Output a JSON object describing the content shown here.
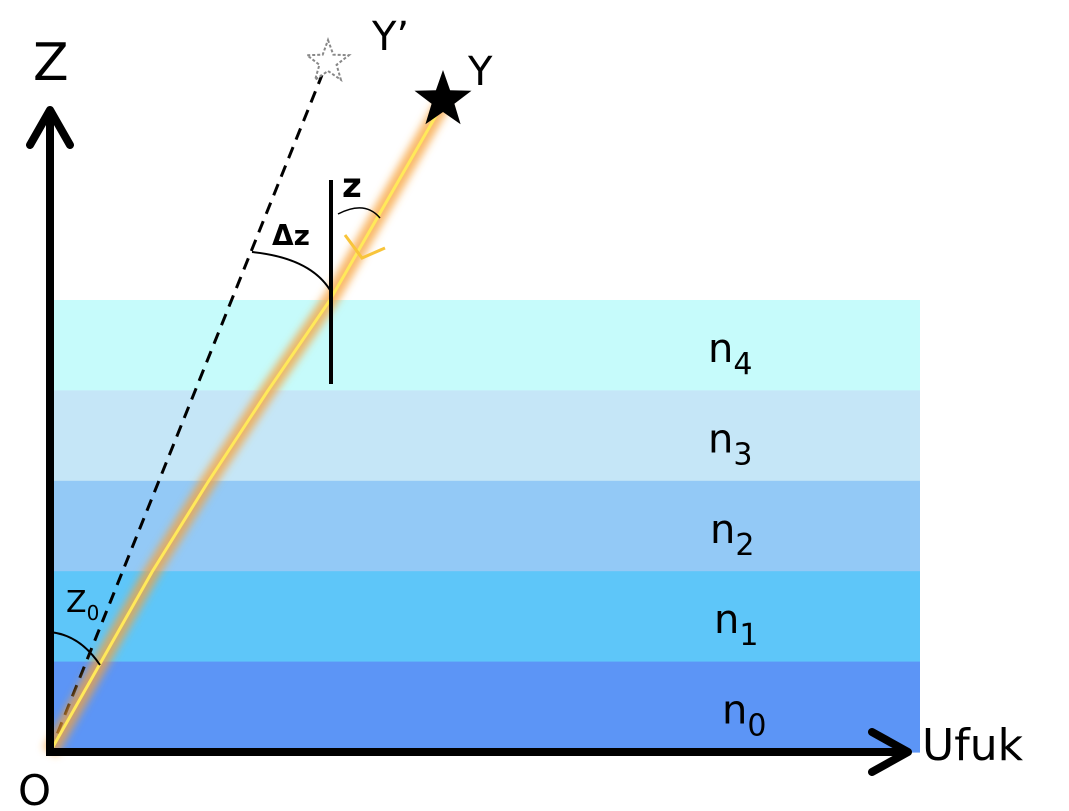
{
  "axes": {
    "vertical": "Z",
    "horizontal": "Ufuk",
    "origin": "O"
  },
  "stars": {
    "apparent": "Y’",
    "true": "Y"
  },
  "angles": {
    "zenith": "z",
    "refraction": "Δz",
    "observed": {
      "symbol": "Z",
      "index": "0"
    }
  },
  "layers": [
    {
      "symbol": "n",
      "index": "4"
    },
    {
      "symbol": "n",
      "index": "3"
    },
    {
      "symbol": "n",
      "index": "2"
    },
    {
      "symbol": "n",
      "index": "1"
    },
    {
      "symbol": "n",
      "index": "0"
    }
  ]
}
